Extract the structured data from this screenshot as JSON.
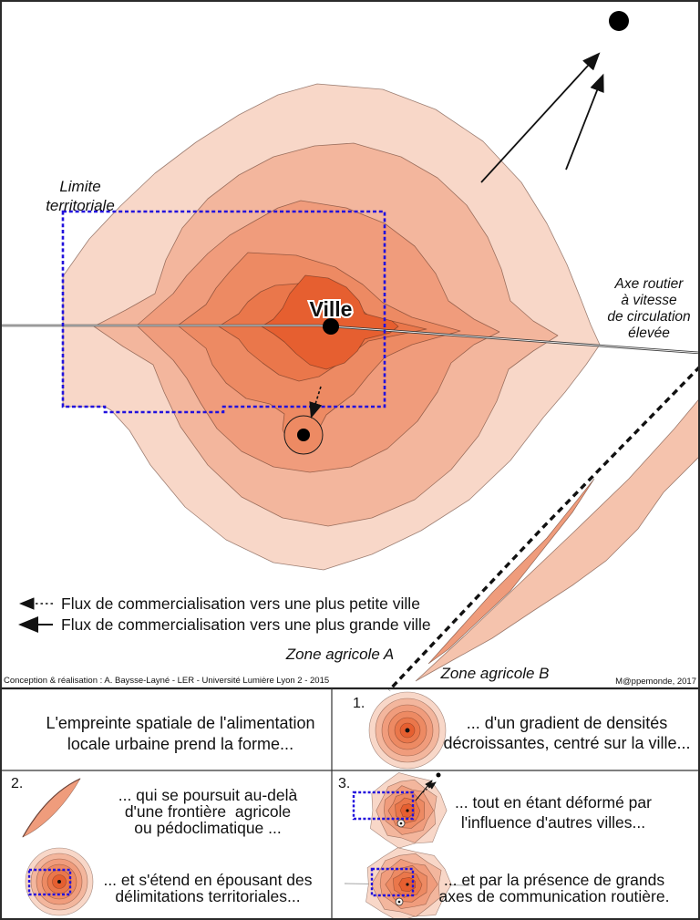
{
  "main": {
    "limite": [
      "Limite",
      "territoriale"
    ],
    "ville": "Ville",
    "axe": [
      "Axe routier",
      "à vitesse",
      "de circulation",
      "élevée"
    ],
    "zone_a": "Zone agricole A",
    "zone_b": "Zone agricole B",
    "legend": [
      {
        "label": "Flux de commercialisation vers une plus petite ville",
        "style": "dashed-arrow"
      },
      {
        "label": "Flux de commercialisation vers une plus grande ville",
        "style": "solid-arrow"
      }
    ],
    "credit_left": "Conception & réalisation : A. Baysse-Layné - LER - Université Lumière Lyon 2 - 2015",
    "credit_right": "M@ppemonde, 2017"
  },
  "panel": {
    "intro": [
      "L'empreinte spatiale de l'alimentation",
      "locale urbaine prend la forme..."
    ],
    "step1": {
      "num": "1.",
      "lines": [
        "... d'un gradient de densités",
        "décroissantes, centré sur la ville..."
      ]
    },
    "step2": {
      "num": "2.",
      "text_top": [
        "... qui se poursuit au-delà",
        "d'une frontière  agricole",
        "ou pédoclimatique ..."
      ],
      "text_bottom": [
        "... et s'étend en épousant des",
        "délimitations territoriales..."
      ]
    },
    "step3": {
      "num": "3.",
      "text_top": [
        "... tout en étant déformé par",
        "l'influence d'autres villes..."
      ],
      "text_bottom": [
        "... et par la présence de grands",
        "axes de communication routière."
      ]
    }
  },
  "colors": {
    "rings": [
      "#f8d7c8",
      "#f3b69d",
      "#f09c7c",
      "#ed8a63",
      "#ea774b",
      "#e65f30"
    ],
    "crescent": "#f5c3ad",
    "sliver": "#ef9c7c",
    "territory_blue": "#2211dd",
    "road": "#3d3d3d",
    "ink": "#111111"
  }
}
